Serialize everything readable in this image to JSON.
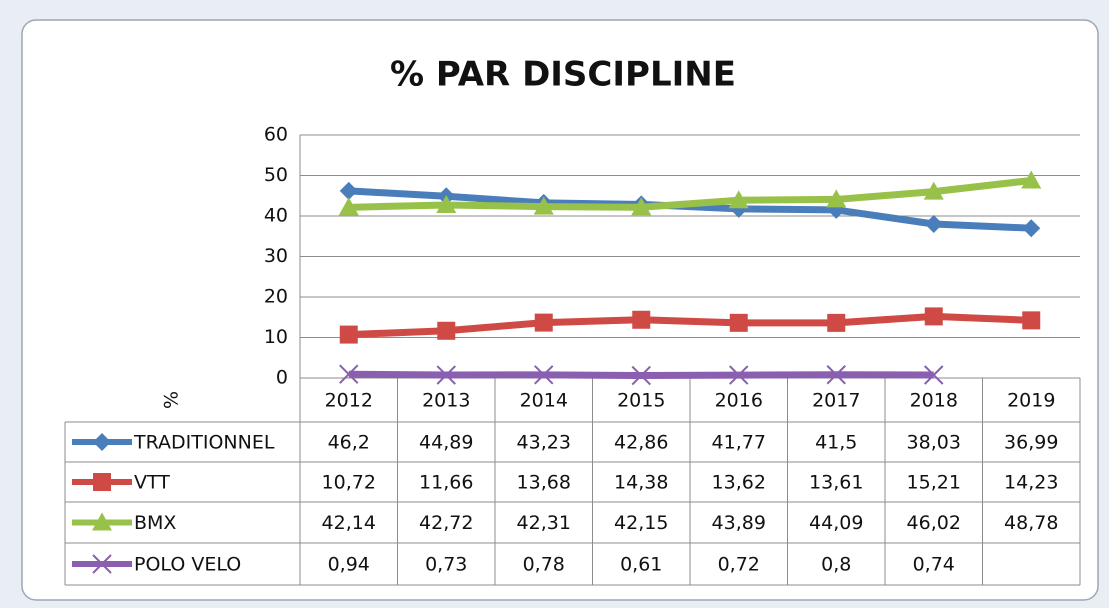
{
  "chart_data": {
    "type": "line",
    "title": "% PAR DISCIPLINE",
    "y_label": "%",
    "categories": [
      "2012",
      "2013",
      "2014",
      "2015",
      "2016",
      "2017",
      "2018",
      "2019"
    ],
    "series": [
      {
        "name": "TRADITIONNEL",
        "color": "#4a7ebb",
        "marker": "diamond",
        "values": [
          46.2,
          44.89,
          43.23,
          42.86,
          41.77,
          41.5,
          38.03,
          36.99
        ],
        "value_labels": [
          "46,2",
          "44,89",
          "43,23",
          "42,86",
          "41,77",
          "41,5",
          "38,03",
          "36,99"
        ]
      },
      {
        "name": "VTT",
        "color": "#d04a45",
        "marker": "square",
        "values": [
          10.72,
          11.66,
          13.68,
          14.38,
          13.62,
          13.61,
          15.21,
          14.23
        ],
        "value_labels": [
          "10,72",
          "11,66",
          "13,68",
          "14,38",
          "13,62",
          "13,61",
          "15,21",
          "14,23"
        ]
      },
      {
        "name": "BMX",
        "color": "#98c14a",
        "marker": "triangle",
        "values": [
          42.14,
          42.72,
          42.31,
          42.15,
          43.89,
          44.09,
          46.02,
          48.78
        ],
        "value_labels": [
          "42,14",
          "42,72",
          "42,31",
          "42,15",
          "43,89",
          "44,09",
          "46,02",
          "48,78"
        ]
      },
      {
        "name": "POLO VELO",
        "color": "#8a5fb0",
        "marker": "x",
        "values": [
          0.94,
          0.73,
          0.78,
          0.61,
          0.72,
          0.8,
          0.74,
          null
        ],
        "value_labels": [
          "0,94",
          "0,73",
          "0,78",
          "0,61",
          "0,72",
          "0,8",
          "0,74",
          null
        ]
      }
    ],
    "ylim": [
      0,
      60
    ],
    "yticks": [
      0,
      10,
      20,
      30,
      40,
      50,
      60
    ],
    "grid": true
  }
}
